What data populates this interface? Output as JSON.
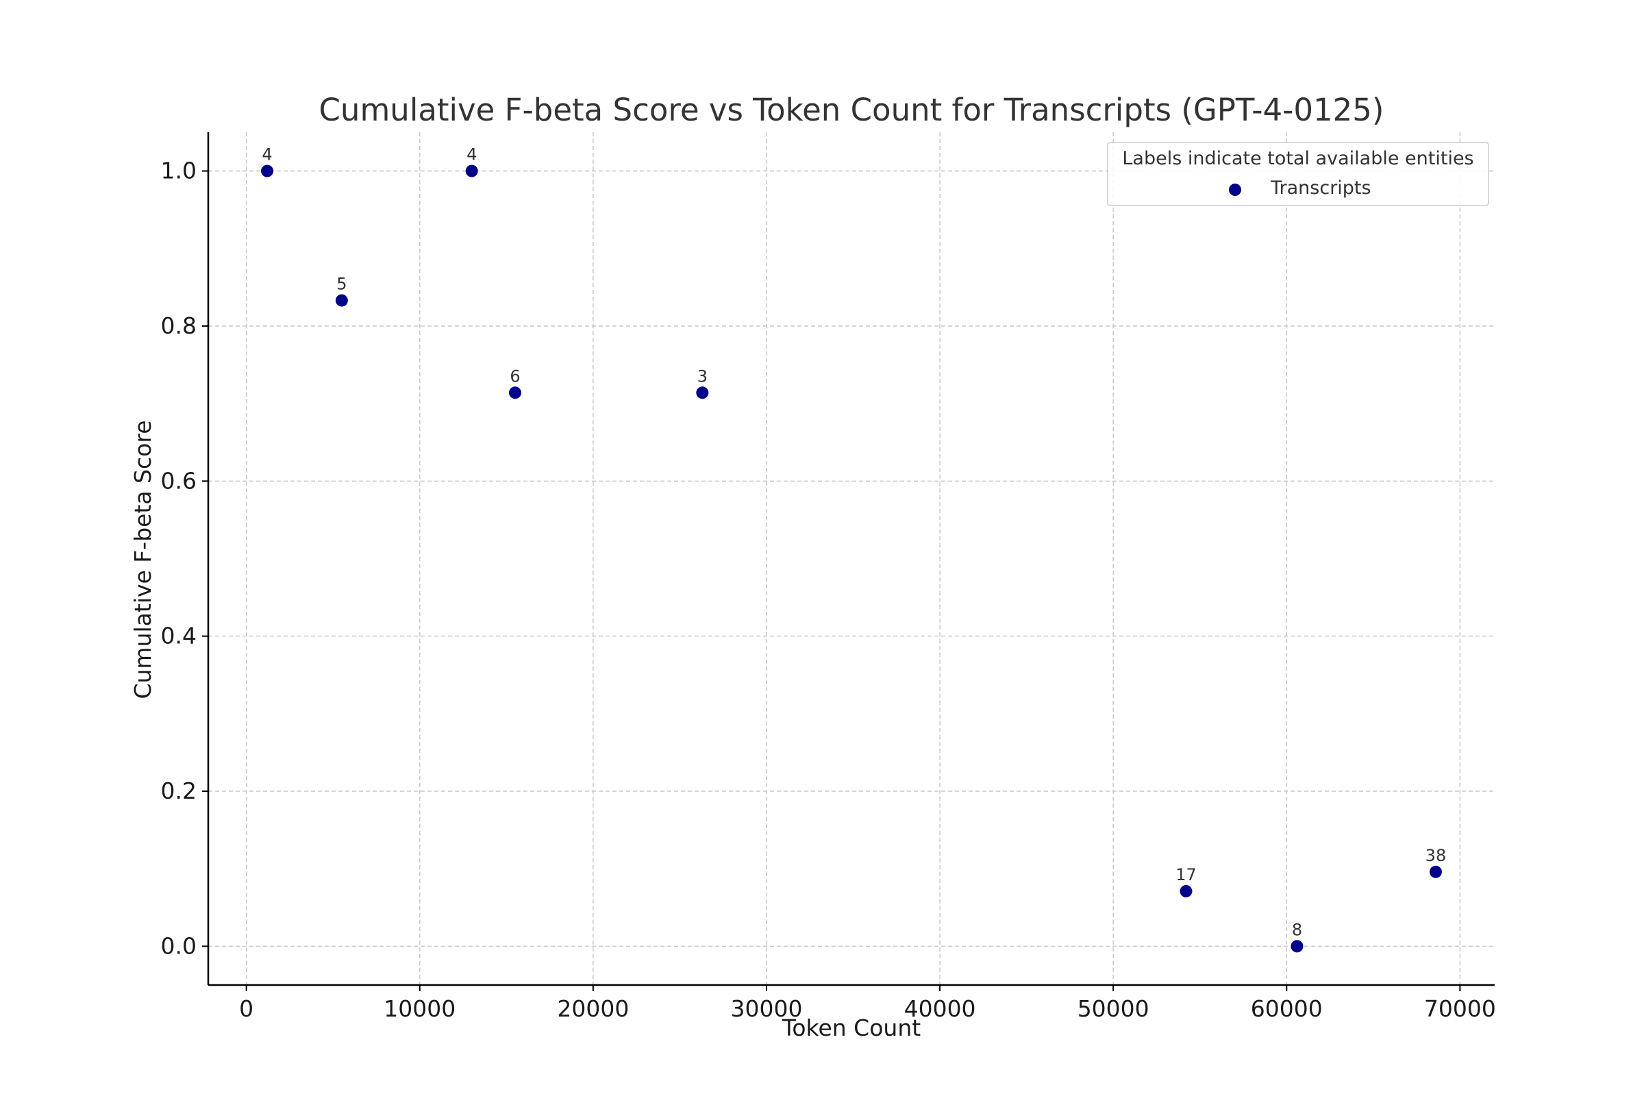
{
  "chart_data": {
    "type": "scatter",
    "title": "Cumulative F-beta Score vs Token Count for Transcripts (GPT-4-0125)",
    "xlabel": "Token Count",
    "ylabel": "Cumulative F-beta Score",
    "xlim": [
      -2200,
      72000
    ],
    "ylim": [
      -0.05,
      1.05
    ],
    "xticks": [
      0,
      10000,
      20000,
      30000,
      40000,
      50000,
      60000,
      70000
    ],
    "yticks": [
      0.0,
      0.2,
      0.4,
      0.6,
      0.8,
      1.0
    ],
    "xtick_labels": [
      "0",
      "10000",
      "20000",
      "30000",
      "40000",
      "50000",
      "60000",
      "70000"
    ],
    "ytick_labels": [
      "0.0",
      "0.2",
      "0.4",
      "0.6",
      "0.8",
      "1.0"
    ],
    "grid": true,
    "legend": {
      "title": "Labels indicate total available entities",
      "placement": "top-right",
      "entries": [
        "Transcripts"
      ]
    },
    "series": [
      {
        "name": "Transcripts",
        "color": "#00008b",
        "points": [
          {
            "x": 1200,
            "y": 1.0,
            "label": "4"
          },
          {
            "x": 5500,
            "y": 0.833,
            "label": "5"
          },
          {
            "x": 13000,
            "y": 1.0,
            "label": "4"
          },
          {
            "x": 15500,
            "y": 0.714,
            "label": "6"
          },
          {
            "x": 26300,
            "y": 0.714,
            "label": "3"
          },
          {
            "x": 54200,
            "y": 0.071,
            "label": "17"
          },
          {
            "x": 60600,
            "y": 0.0,
            "label": "8"
          },
          {
            "x": 68600,
            "y": 0.096,
            "label": "38"
          }
        ]
      }
    ]
  }
}
